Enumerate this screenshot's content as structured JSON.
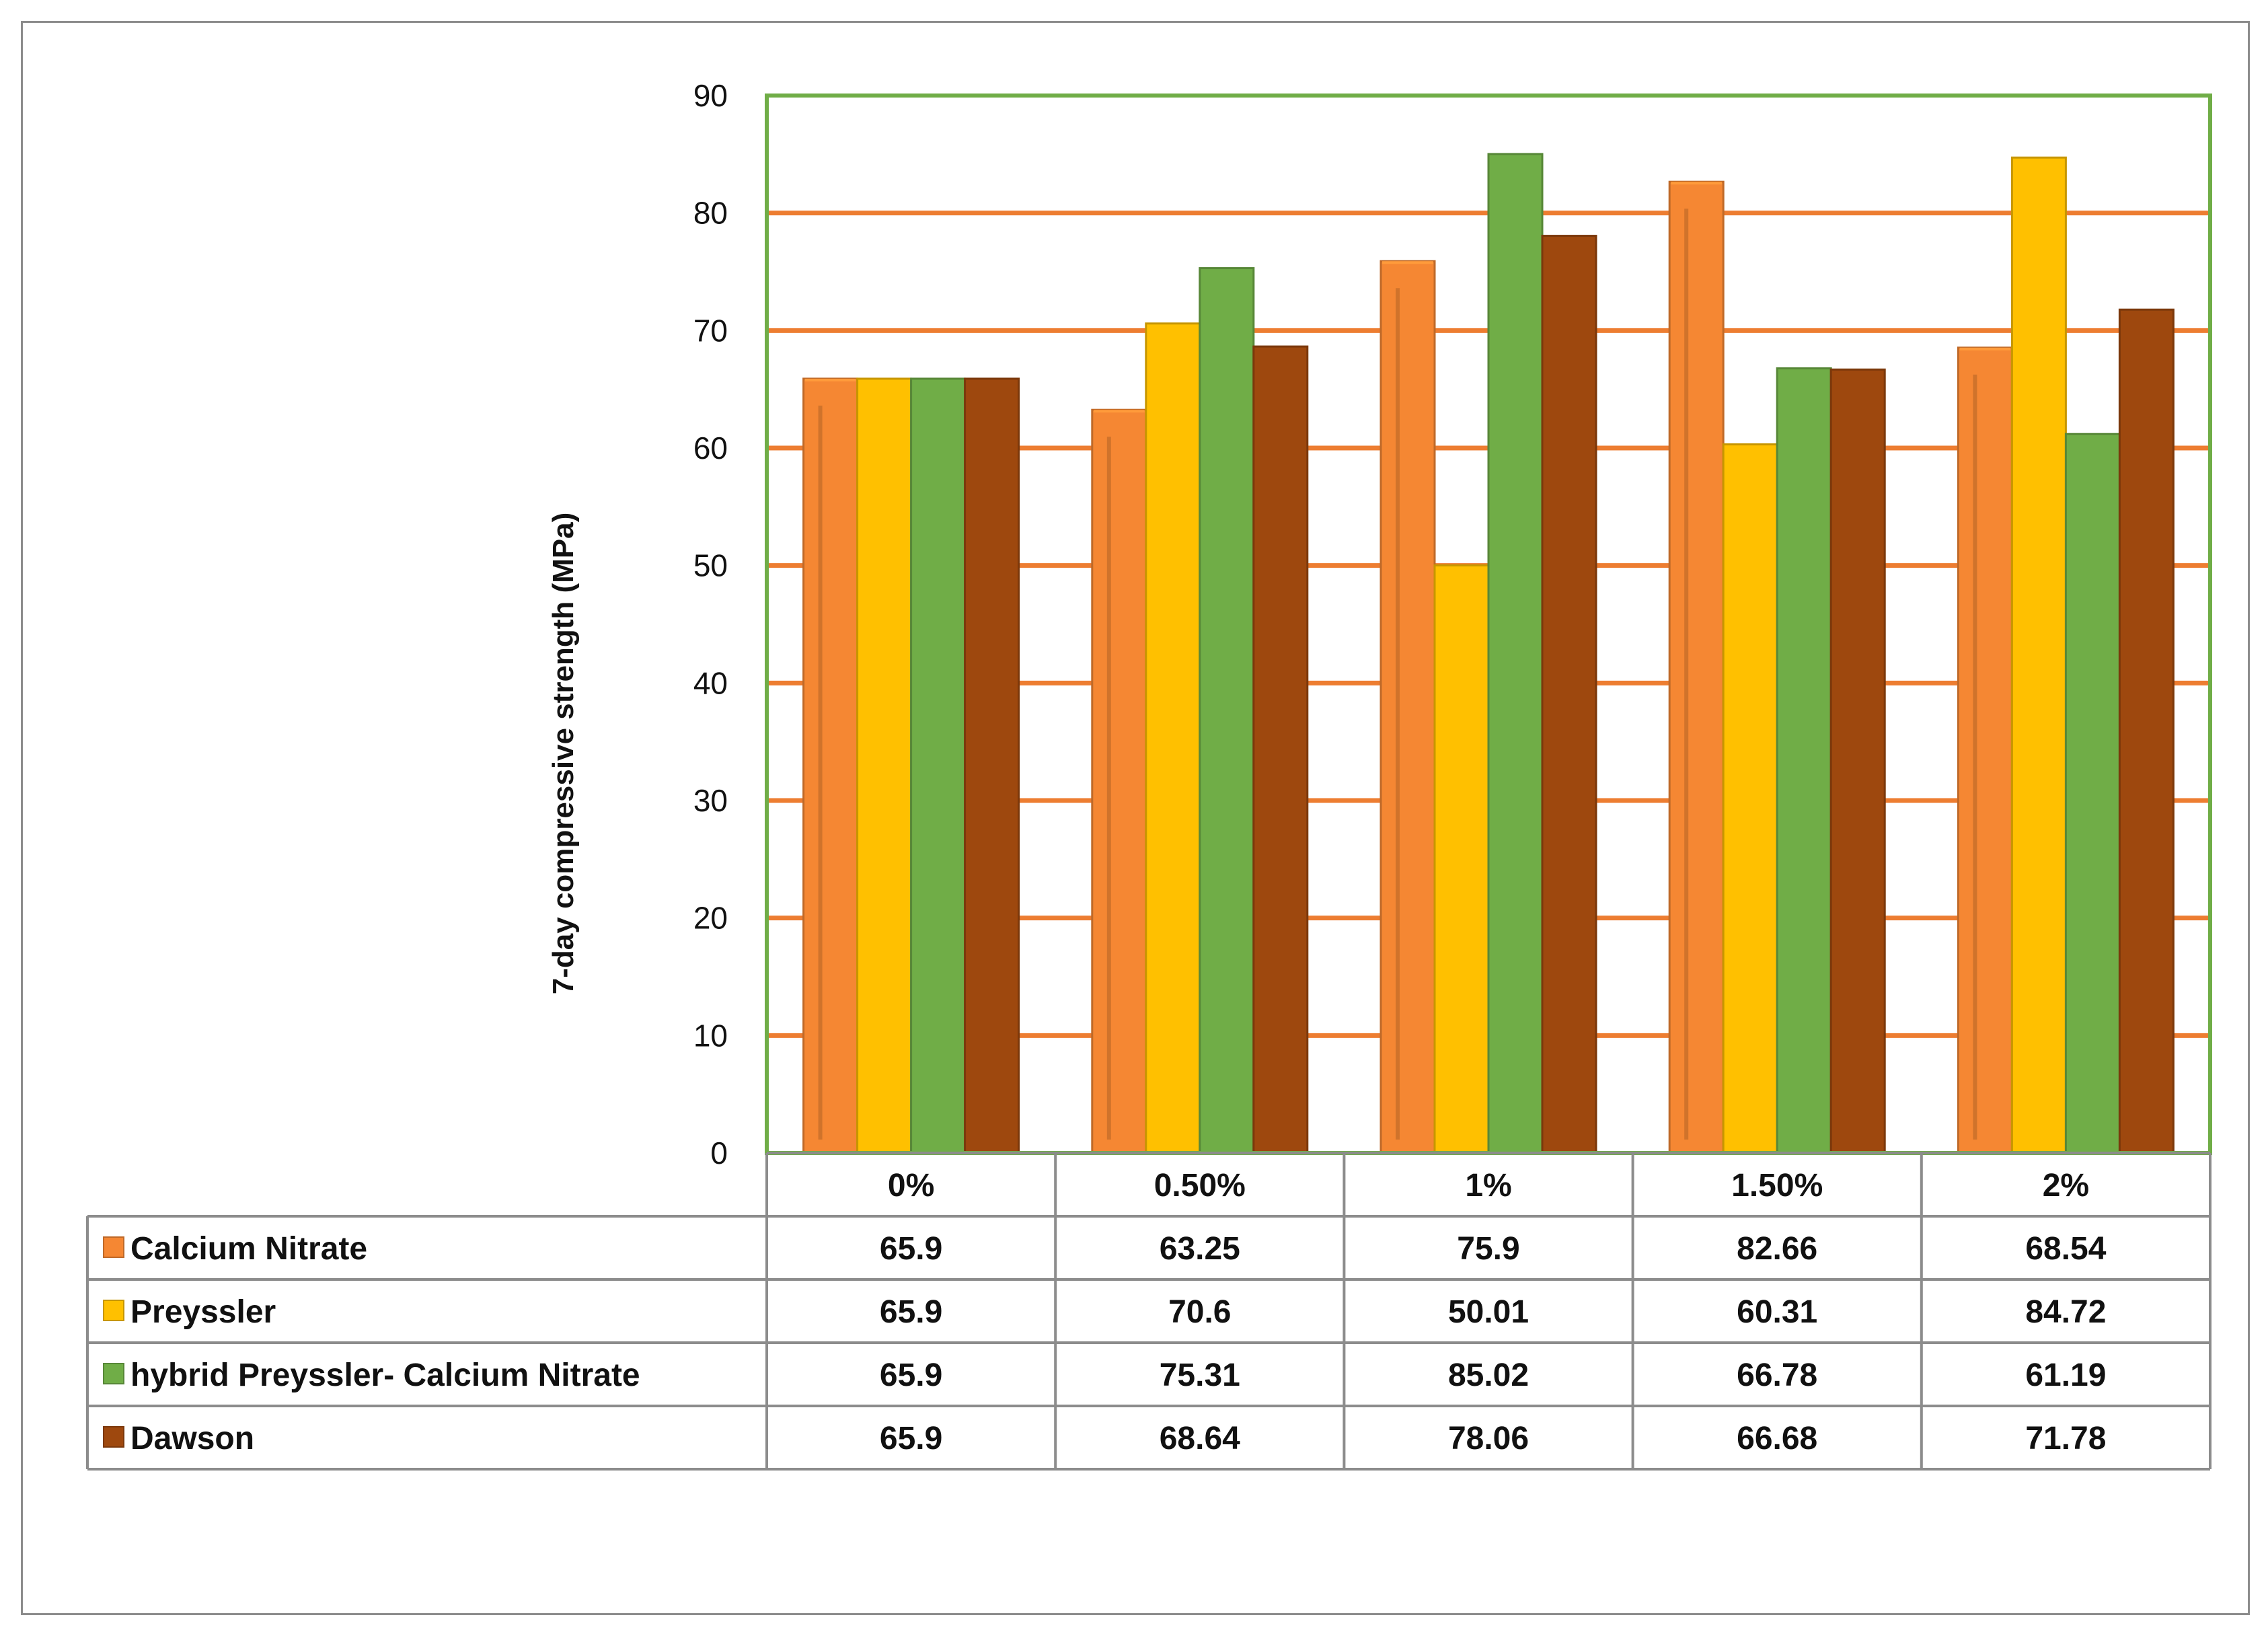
{
  "chart_data": {
    "type": "bar",
    "title": "",
    "xlabel": "",
    "ylabel": "7-day compressive strength  (MPa)",
    "ylim": [
      0,
      90
    ],
    "yticks": [
      0,
      10,
      20,
      30,
      40,
      50,
      60,
      70,
      80,
      90
    ],
    "grid": true,
    "legend": "data-table",
    "categories": [
      "0%",
      "0.50%",
      "1%",
      "1.50%",
      "2%"
    ],
    "series": [
      {
        "name": "Calcium Nitrate",
        "color": "#f58733",
        "values": [
          65.9,
          63.25,
          75.9,
          82.66,
          68.54
        ],
        "labels": [
          "65.9",
          "63.25",
          "75.9",
          "82.66",
          "68.54"
        ]
      },
      {
        "name": "Preyssler",
        "color": "#ffc000",
        "values": [
          65.9,
          70.6,
          50.01,
          60.31,
          84.72
        ],
        "labels": [
          "65.9",
          "70.6",
          "50.01",
          "60.31",
          "84.72"
        ]
      },
      {
        "name": "hybrid Preyssler- Calcium Nitrate",
        "color": "#70ad47",
        "values": [
          65.9,
          75.31,
          85.02,
          66.78,
          61.19
        ],
        "labels": [
          "65.9",
          "75.31",
          "85.02",
          "66.78",
          "61.19"
        ]
      },
      {
        "name": "Dawson",
        "color": "#9e480e",
        "values": [
          65.9,
          68.64,
          78.06,
          66.68,
          71.78
        ],
        "labels": [
          "65.9",
          "68.64",
          "78.06",
          "66.68",
          "71.78"
        ]
      }
    ],
    "gridline_color": "#ed7d31",
    "plot_border_color": "#70ad47"
  }
}
